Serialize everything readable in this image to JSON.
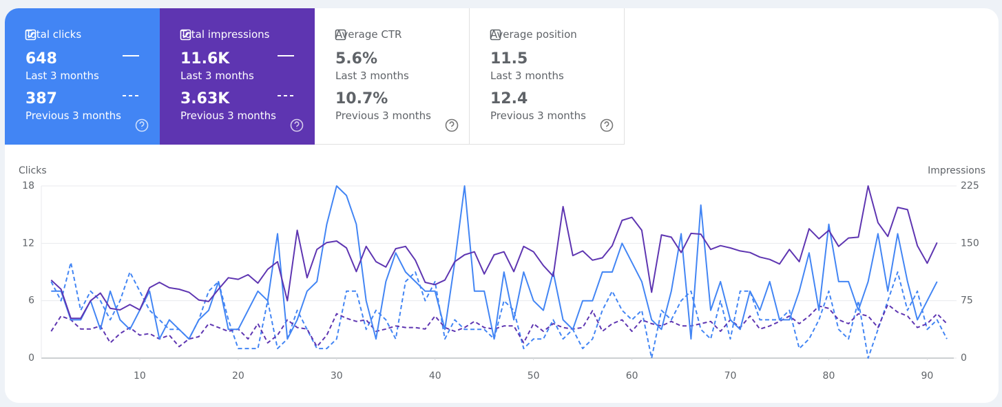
{
  "cards": [
    {
      "title": "Total clicks",
      "checked": true,
      "color": "#4285f4",
      "value": "648",
      "value_label": "Last 3 months",
      "previous": "387",
      "previous_label": "Previous 3 months"
    },
    {
      "title": "Total impressions",
      "checked": true,
      "color": "#5e35b1",
      "value": "11.6K",
      "value_label": "Last 3 months",
      "previous": "3.63K",
      "previous_label": "Previous 3 months"
    },
    {
      "title": "Average CTR",
      "checked": false,
      "value": "5.6%",
      "value_label": "Last 3 months",
      "previous": "10.7%",
      "previous_label": "Previous 3 months"
    },
    {
      "title": "Average position",
      "checked": false,
      "value": "11.5",
      "value_label": "Last 3 months",
      "previous": "12.4",
      "previous_label": "Previous 3 months"
    }
  ],
  "chart_data": {
    "type": "line",
    "y_label": "Clicks",
    "y2_label": "Impressions",
    "x": [
      1,
      2,
      3,
      4,
      5,
      6,
      7,
      8,
      9,
      10,
      11,
      12,
      13,
      14,
      15,
      16,
      17,
      18,
      19,
      20,
      21,
      22,
      23,
      24,
      25,
      26,
      27,
      28,
      29,
      30,
      31,
      32,
      33,
      34,
      35,
      36,
      37,
      38,
      39,
      40,
      41,
      42,
      43,
      44,
      45,
      46,
      47,
      48,
      49,
      50,
      51,
      52,
      53,
      54,
      55,
      56,
      57,
      58,
      59,
      60,
      61,
      62,
      63,
      64,
      65,
      66,
      67,
      68,
      69,
      70,
      71,
      72,
      73,
      74,
      75,
      76,
      77,
      78,
      79,
      80,
      81,
      82,
      83,
      84,
      85,
      86,
      87,
      88,
      89,
      90,
      91,
      92
    ],
    "xlim": [
      0,
      92.7
    ],
    "xticks": [
      10,
      20,
      30,
      40,
      50,
      60,
      70,
      80,
      90
    ],
    "ylim": [
      0,
      18
    ],
    "yticks": [
      0,
      6,
      12,
      18
    ],
    "y2lim": [
      0,
      225
    ],
    "y2ticks": [
      0,
      75,
      150,
      225
    ],
    "grid": true,
    "series": [
      {
        "color": "#4285f4",
        "dashed": true,
        "values": [
          8,
          6,
          10,
          5,
          7,
          6,
          4,
          6,
          9,
          7,
          5,
          4,
          3,
          3,
          2,
          4,
          7,
          8,
          4,
          1,
          1,
          1,
          6,
          1,
          2,
          5,
          3,
          1,
          1,
          2,
          7,
          7,
          3,
          5,
          4,
          2,
          8,
          9,
          6,
          8,
          2,
          4,
          3,
          3,
          3,
          2,
          6,
          5,
          1,
          2,
          2,
          4,
          2,
          3,
          1,
          2,
          5,
          7,
          5,
          4,
          5,
          0,
          5,
          4,
          6,
          7,
          3,
          2,
          6,
          2,
          7,
          7,
          4,
          4,
          4,
          5,
          1,
          2,
          4,
          7,
          3,
          2,
          6,
          0,
          3,
          6,
          9,
          5,
          7,
          3,
          4,
          2
        ]
      },
      {
        "color": "#5e35b1",
        "dashed": true,
        "axis": "y2",
        "values": [
          35,
          55,
          50,
          38,
          38,
          42,
          20,
          32,
          40,
          30,
          32,
          25,
          30,
          15,
          25,
          28,
          45,
          40,
          35,
          38,
          25,
          45,
          20,
          30,
          50,
          40,
          38,
          15,
          30,
          58,
          52,
          48,
          50,
          35,
          38,
          42,
          40,
          40,
          38,
          55,
          40,
          35,
          40,
          48,
          40,
          38,
          42,
          42,
          20,
          45,
          35,
          45,
          40,
          38,
          40,
          62,
          35,
          45,
          50,
          35,
          50,
          45,
          42,
          48,
          42,
          42,
          45,
          48,
          35,
          50,
          40,
          55,
          38,
          42,
          48,
          55,
          45,
          55,
          68,
          65,
          50,
          45,
          58,
          55,
          40,
          70,
          60,
          55,
          40,
          45,
          58,
          45
        ]
      },
      {
        "color": "#4285f4",
        "dashed": false,
        "values": [
          7,
          7,
          4,
          4,
          6,
          3,
          7,
          4,
          3,
          5,
          7,
          2,
          4,
          3,
          2,
          4,
          5,
          8,
          3,
          3,
          5,
          7,
          6,
          13,
          2,
          4,
          7,
          8,
          14,
          18,
          17,
          14,
          6,
          2,
          8,
          11,
          9,
          8,
          7,
          7,
          3,
          10,
          18,
          7,
          7,
          2,
          9,
          4,
          9,
          6,
          5,
          9,
          4,
          3,
          6,
          6,
          9,
          9,
          12,
          10,
          8,
          4,
          3,
          7,
          13,
          2,
          16,
          5,
          8,
          4,
          3,
          7,
          5,
          8,
          4,
          4,
          7,
          11,
          5,
          14,
          8,
          8,
          5,
          8,
          13,
          7,
          13,
          8,
          4,
          6,
          8,
          null
        ]
      },
      {
        "color": "#5e35b1",
        "dashed": false,
        "axis": "y2",
        "values": [
          102,
          90,
          52,
          52,
          75,
          85,
          65,
          63,
          70,
          63,
          92,
          99,
          92,
          90,
          86,
          76,
          74,
          90,
          105,
          103,
          109,
          98,
          116,
          126,
          75,
          167,
          105,
          142,
          151,
          153,
          144,
          113,
          146,
          126,
          119,
          143,
          146,
          128,
          99,
          96,
          102,
          126,
          135,
          139,
          110,
          135,
          139,
          113,
          146,
          139,
          121,
          107,
          198,
          134,
          140,
          128,
          131,
          147,
          180,
          184,
          167,
          86,
          161,
          158,
          138,
          163,
          162,
          142,
          147,
          144,
          140,
          138,
          132,
          129,
          123,
          142,
          126,
          169,
          156,
          167,
          146,
          157,
          158,
          225,
          177,
          159,
          197,
          194,
          147,
          124,
          151,
          null
        ]
      }
    ]
  }
}
